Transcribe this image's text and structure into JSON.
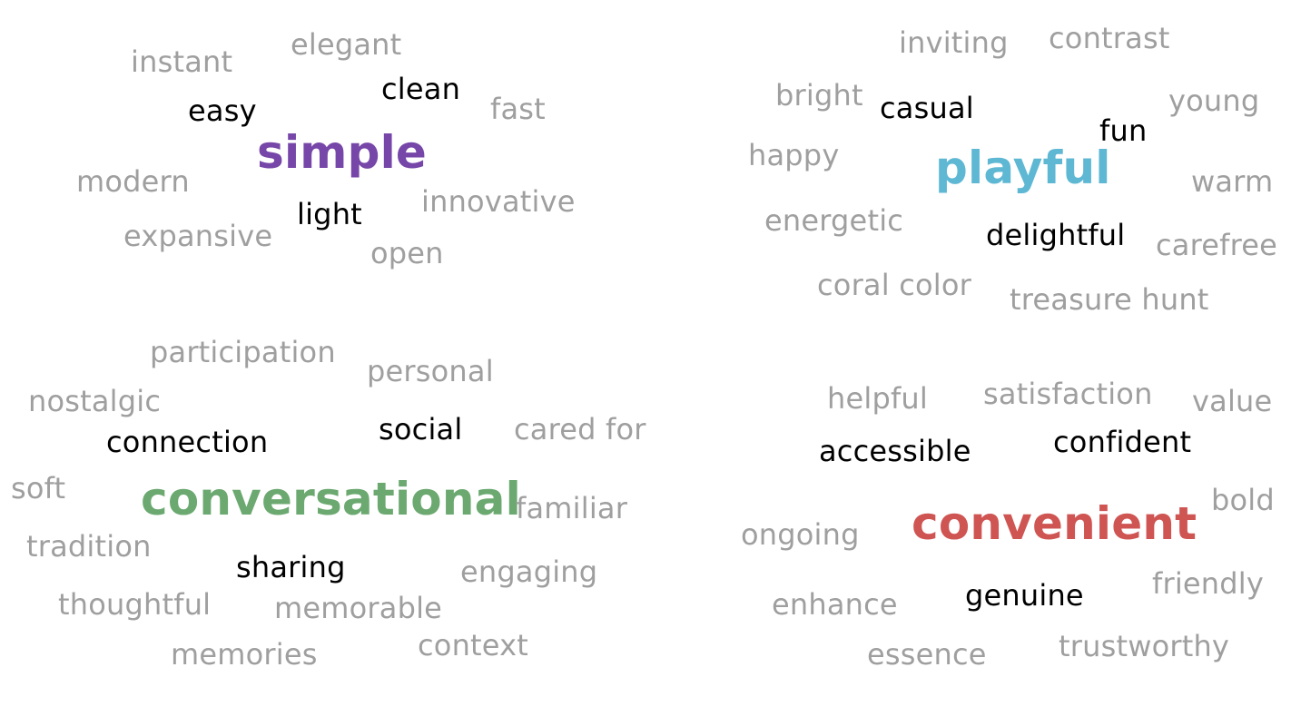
{
  "colors": {
    "secondary_word": "#9f9f9f",
    "related_word": "#000000",
    "simple": "#7646a8",
    "playful": "#5fb8d3",
    "conversational": "#6ba970",
    "convenient": "#cf5553"
  },
  "simple_group": {
    "main": "simple",
    "related": [
      "easy",
      "clean",
      "light"
    ],
    "others": [
      "instant",
      "elegant",
      "fast",
      "modern",
      "innovative",
      "expansive",
      "open"
    ]
  },
  "playful_group": {
    "main": "playful",
    "related": [
      "casual",
      "fun",
      "delightful"
    ],
    "others": [
      "inviting",
      "contrast",
      "bright",
      "young",
      "happy",
      "warm",
      "energetic",
      "carefree",
      "coral color",
      "treasure hunt"
    ]
  },
  "conversational_group": {
    "main": "conversational",
    "related": [
      "connection",
      "social",
      "sharing"
    ],
    "others": [
      "participation",
      "personal",
      "nostalgic",
      "cared for",
      "soft",
      "familiar",
      "tradition",
      "engaging",
      "thoughtful",
      "memorable",
      "memories",
      "context"
    ]
  },
  "convenient_group": {
    "main": "convenient",
    "related": [
      "accessible",
      "confident",
      "genuine"
    ],
    "others": [
      "helpful",
      "satisfaction",
      "value",
      "bold",
      "ongoing",
      "friendly",
      "enhance",
      "essence",
      "trustworthy"
    ]
  }
}
